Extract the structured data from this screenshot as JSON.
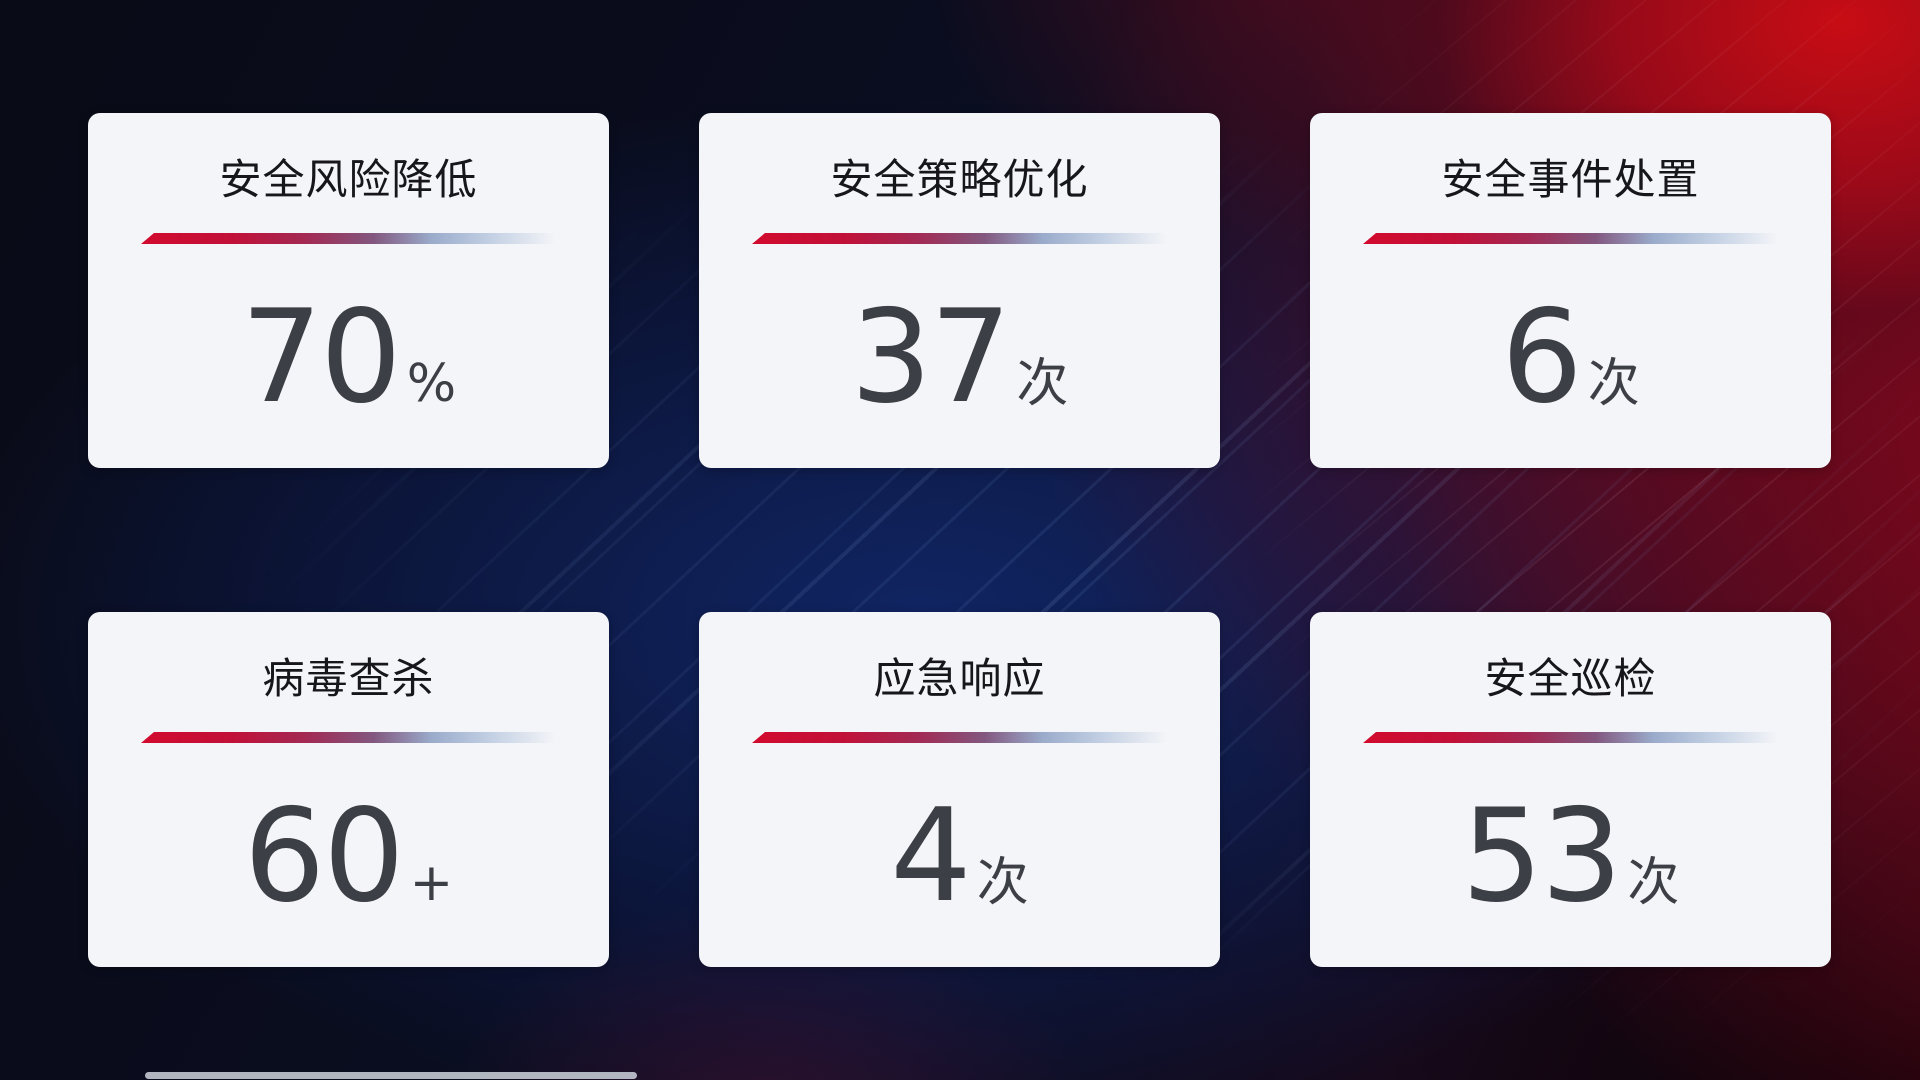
{
  "colors": {
    "card_background": "#f4f5f8",
    "title_text": "#17171b",
    "value_text": "#3c3f46",
    "divider_start": "#d20a2e",
    "divider_mid": "#82577f",
    "divider_end": "#c2cfe3",
    "background_red_accent": "#b50d18",
    "background_blue_accent": "#12276a",
    "background_base": "#090b17"
  },
  "cards": [
    {
      "title": "安全风险降低",
      "value": "70",
      "unit": "%"
    },
    {
      "title": "安全策略优化",
      "value": "37",
      "unit": "次"
    },
    {
      "title": "安全事件处置",
      "value": "6",
      "unit": "次"
    },
    {
      "title": "病毒查杀",
      "value": "60",
      "unit": "+"
    },
    {
      "title": "应急响应",
      "value": "4",
      "unit": "次"
    },
    {
      "title": "安全巡检",
      "value": "53",
      "unit": "次"
    }
  ]
}
